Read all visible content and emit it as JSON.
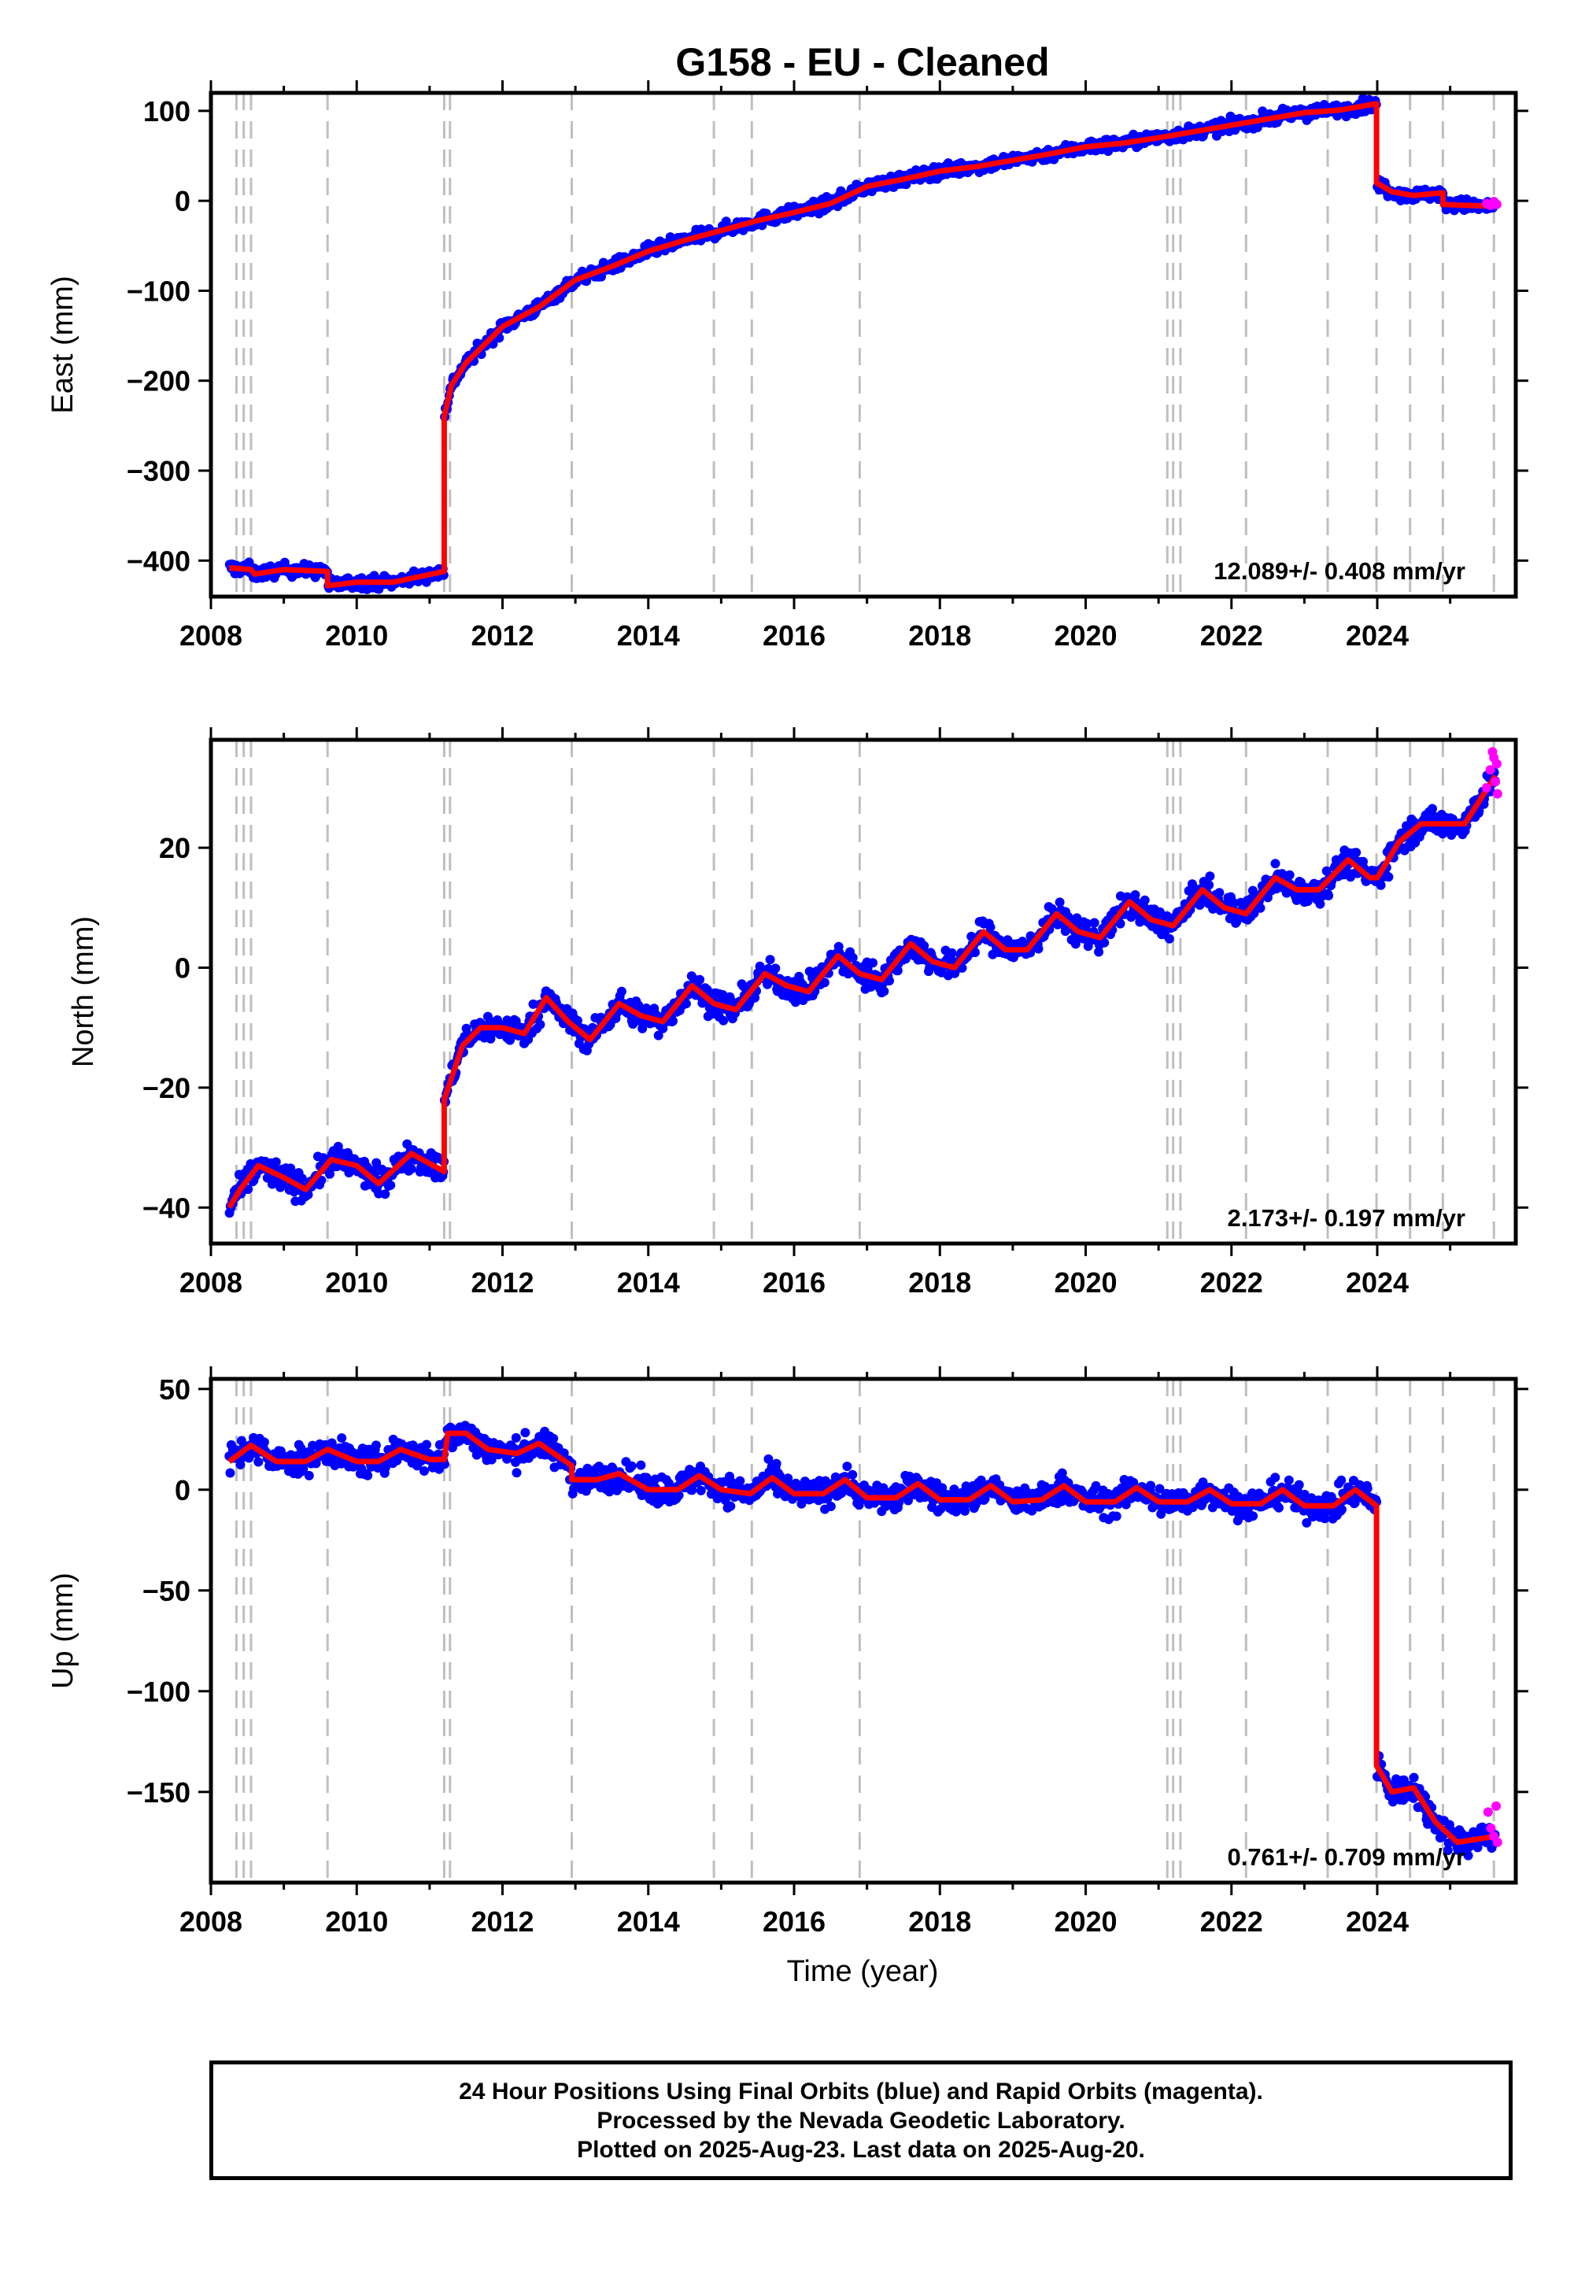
{
  "title": "G158  - EU - Cleaned",
  "x_axis_label": "Time (year)",
  "footer": {
    "line1": "24 Hour Positions Using Final Orbits (blue) and Rapid Orbits (magenta).",
    "line2": "Processed by the Nevada Geodetic Laboratory.",
    "line3": "Plotted on 2025-Aug-23. Last data on 2025-Aug-20."
  },
  "colors": {
    "final_orbits": "#0000ff",
    "rapid_orbits": "#ff00ff",
    "model": "#ff0000",
    "event_lines": "#bfbfbf"
  },
  "chart_data": [
    {
      "type": "scatter",
      "component": "east",
      "ylabel": "East (mm)",
      "xlabel": "",
      "xlim": [
        2008.0,
        2025.9
      ],
      "ylim": [
        -440,
        120
      ],
      "x_ticks": [
        2008,
        2010,
        2012,
        2014,
        2016,
        2018,
        2020,
        2022,
        2024
      ],
      "y_ticks": [
        100,
        0,
        -100,
        -200,
        -300,
        -400
      ],
      "rate_label": "12.089+/- 0.408 mm/yr",
      "model_series": {
        "name": "",
        "x": [
          2008.25,
          2008.55,
          2008.6,
          2009.0,
          2009.6,
          2009.6,
          2010.0,
          2010.5,
          2011.2,
          2011.2,
          2011.3,
          2011.5,
          2012.0,
          2012.5,
          2013.0,
          2013.5,
          2014.0,
          2014.5,
          2015.0,
          2015.5,
          2016.0,
          2016.5,
          2017.0,
          2017.5,
          2018.0,
          2018.5,
          2019.0,
          2019.5,
          2020.0,
          2020.5,
          2021.0,
          2021.5,
          2022.0,
          2022.5,
          2023.0,
          2023.5,
          2023.99,
          2023.99,
          2024.2,
          2024.5,
          2024.9,
          2024.9,
          2025.2,
          2025.62
        ],
        "y": [
          -408,
          -410,
          -415,
          -410,
          -412,
          -428,
          -424,
          -424,
          -412,
          -240,
          -205,
          -180,
          -140,
          -118,
          -88,
          -73,
          -56,
          -44,
          -33,
          -22,
          -13,
          -3,
          16,
          24,
          33,
          38,
          45,
          52,
          60,
          64,
          70,
          77,
          84,
          91,
          98,
          101,
          108,
          20,
          10,
          6,
          9,
          -4,
          -5,
          -6
        ]
      },
      "final_series": {
        "name": "",
        "noise": 5,
        "density": 85,
        "range": [
          2008.25,
          2025.62
        ]
      },
      "rapid_series": {
        "name": "",
        "x": [
          2025.5,
          2025.55,
          2025.6,
          2025.64
        ],
        "y": [
          -3,
          -5,
          -1,
          -4
        ]
      }
    },
    {
      "type": "scatter",
      "component": "north",
      "ylabel": "North (mm)",
      "xlabel": "",
      "xlim": [
        2008.0,
        2025.9
      ],
      "ylim": [
        -46,
        38
      ],
      "x_ticks": [
        2008,
        2010,
        2012,
        2014,
        2016,
        2018,
        2020,
        2022,
        2024
      ],
      "y_ticks": [
        20,
        0,
        -20,
        -40
      ],
      "rate_label": "2.173+/- 0.197 mm/yr",
      "model_series": {
        "name": "",
        "x": [
          2008.25,
          2008.4,
          2008.65,
          2009.0,
          2009.3,
          2009.65,
          2010.0,
          2010.3,
          2010.75,
          2011.2,
          2011.2,
          2011.45,
          2011.7,
          2012.0,
          2012.3,
          2012.6,
          2012.9,
          2013.2,
          2013.6,
          2013.9,
          2014.2,
          2014.6,
          2014.9,
          2015.2,
          2015.6,
          2015.9,
          2016.2,
          2016.6,
          2016.9,
          2017.2,
          2017.6,
          2017.9,
          2018.2,
          2018.6,
          2018.9,
          2019.2,
          2019.6,
          2019.9,
          2020.2,
          2020.6,
          2020.9,
          2021.2,
          2021.6,
          2021.9,
          2022.2,
          2022.6,
          2022.9,
          2023.2,
          2023.6,
          2023.9,
          2024.0,
          2024.3,
          2024.6,
          2024.9,
          2025.2,
          2025.62
        ],
        "y": [
          -40,
          -37,
          -33,
          -35,
          -37,
          -32,
          -33,
          -36,
          -31,
          -34,
          -22,
          -13,
          -10,
          -10,
          -11,
          -5,
          -9,
          -12,
          -6,
          -8,
          -9,
          -3,
          -6,
          -7,
          -1,
          -3,
          -4,
          2,
          -1,
          -2,
          4,
          1,
          0,
          6,
          3,
          3,
          9,
          6,
          5,
          11,
          8,
          7,
          13,
          10,
          9,
          15,
          13,
          13,
          18,
          15,
          15,
          21,
          24,
          24,
          24,
          32
        ]
      },
      "final_series": {
        "name": "",
        "noise": 1.6,
        "density": 85,
        "range": [
          2008.25,
          2025.62
        ]
      },
      "rapid_series": {
        "name": "",
        "x": [
          2025.5,
          2025.55,
          2025.58,
          2025.6,
          2025.62,
          2025.64,
          2025.65
        ],
        "y": [
          30,
          33,
          36,
          35,
          31,
          34,
          29
        ]
      }
    },
    {
      "type": "scatter",
      "component": "up",
      "ylabel": "Up (mm)",
      "xlabel": "Time (year)",
      "xlim": [
        2008.0,
        2025.9
      ],
      "ylim": [
        -195,
        55
      ],
      "x_ticks": [
        2008,
        2010,
        2012,
        2014,
        2016,
        2018,
        2020,
        2022,
        2024
      ],
      "y_ticks": [
        50,
        0,
        -50,
        -100,
        -150
      ],
      "rate_label": "0.761+/- 0.709 mm/yr",
      "model_series": {
        "name": "",
        "x": [
          2008.25,
          2008.55,
          2008.9,
          2009.3,
          2009.6,
          2010.0,
          2010.3,
          2010.6,
          2011.0,
          2011.2,
          2011.25,
          2011.5,
          2011.8,
          2012.2,
          2012.5,
          2012.95,
          2012.95,
          2013.3,
          2013.6,
          2014.0,
          2014.4,
          2014.7,
          2015.0,
          2015.4,
          2015.7,
          2016.0,
          2016.4,
          2016.7,
          2017.0,
          2017.4,
          2017.7,
          2018.0,
          2018.4,
          2018.7,
          2019.0,
          2019.4,
          2019.7,
          2020.0,
          2020.4,
          2020.7,
          2021.0,
          2021.4,
          2021.7,
          2022.0,
          2022.4,
          2022.7,
          2023.0,
          2023.4,
          2023.7,
          2023.99,
          2023.99,
          2024.2,
          2024.5,
          2024.8,
          2025.1,
          2025.62
        ],
        "y": [
          14,
          22,
          14,
          14,
          20,
          14,
          14,
          20,
          15,
          15,
          28,
          28,
          20,
          18,
          23,
          12,
          5,
          5,
          8,
          0,
          0,
          7,
          0,
          -2,
          6,
          -2,
          -2,
          5,
          -4,
          -4,
          3,
          -5,
          -5,
          2,
          -6,
          -5,
          2,
          -6,
          -6,
          1,
          -6,
          -6,
          0,
          -7,
          -7,
          0,
          -8,
          -8,
          0,
          -8,
          -137,
          -150,
          -148,
          -165,
          -175,
          -172
        ]
      },
      "final_series": {
        "name": "",
        "noise": 5,
        "density": 85,
        "range": [
          2008.25,
          2025.62
        ]
      },
      "rapid_series": {
        "name": "",
        "x": [
          2025.52,
          2025.56,
          2025.6,
          2025.63,
          2025.65
        ],
        "y": [
          -160,
          -168,
          -172,
          -157,
          -175
        ]
      }
    }
  ],
  "event_lines": [
    2008.35,
    2008.45,
    2008.55,
    2009.6,
    2011.2,
    2011.28,
    2012.95,
    2014.9,
    2015.42,
    2016.9,
    2021.12,
    2021.2,
    2021.3,
    2022.2,
    2023.32,
    2023.99,
    2024.45,
    2024.9,
    2025.6
  ]
}
